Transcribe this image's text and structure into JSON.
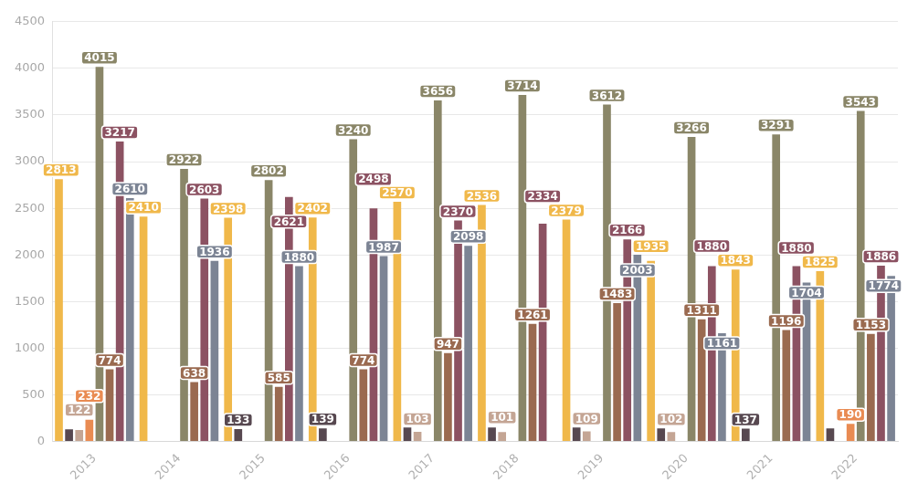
{
  "chart_data": {
    "type": "bar",
    "categories": [
      "2013",
      "2014",
      "2015",
      "2016",
      "2017",
      "2018",
      "2019",
      "2020",
      "2021",
      "2022"
    ],
    "series": [
      {
        "color": "#f0b84a",
        "values": [
          2813,
          2410,
          2398,
          2402,
          2570,
          2536,
          2379,
          1935,
          1843,
          1825
        ],
        "value_labels": [
          "2813",
          "2410",
          "2398",
          "2402",
          "2570",
          "2536",
          "2379",
          "1935",
          "1843",
          "1825"
        ]
      },
      {
        "color": "#574850",
        "values": [
          130,
          null,
          133,
          139,
          150,
          150,
          150,
          140,
          137,
          140
        ],
        "value_labels": [
          null,
          null,
          "133",
          "139",
          null,
          null,
          null,
          null,
          "137",
          null
        ]
      },
      {
        "color": "#c4a594",
        "values": [
          122,
          null,
          null,
          null,
          103,
          101,
          109,
          102,
          null,
          null
        ],
        "value_labels": [
          "122",
          null,
          null,
          null,
          "103",
          "101",
          "109",
          "102",
          null,
          null
        ]
      },
      {
        "color": "#e98b52",
        "values": [
          232,
          null,
          null,
          null,
          null,
          null,
          null,
          null,
          null,
          190
        ],
        "value_labels": [
          "232",
          null,
          null,
          null,
          null,
          null,
          null,
          null,
          null,
          "190"
        ]
      },
      {
        "color": "#8a8668",
        "values": [
          4015,
          2922,
          2802,
          3240,
          3656,
          3714,
          3612,
          3266,
          3291,
          3543
        ],
        "value_labels": [
          "4015",
          "2922",
          "2802",
          "3240",
          "3656",
          "3714",
          "3612",
          "3266",
          "3291",
          "3543"
        ]
      },
      {
        "color": "#9a6a50",
        "values": [
          774,
          638,
          585,
          774,
          947,
          1261,
          1483,
          1311,
          1196,
          1153
        ],
        "value_labels": [
          "774",
          "638",
          "585",
          "774",
          "947",
          "1261",
          "1483",
          "1311",
          "1196",
          "1153"
        ]
      },
      {
        "color": "#8c5262",
        "values": [
          3217,
          2603,
          2621,
          2498,
          2370,
          2334,
          2166,
          1880,
          1880,
          1886
        ],
        "value_labels": [
          "3217",
          "2603",
          "2621",
          "2498",
          "2370",
          "2334",
          "2166",
          "1880",
          "1880",
          "1886"
        ]
      },
      {
        "color": "#7c8494",
        "values": [
          2610,
          1936,
          1880,
          1987,
          2098,
          null,
          2003,
          1161,
          1704,
          1774
        ],
        "value_labels": [
          "2610",
          "1936",
          "1880",
          "1987",
          "2098",
          null,
          "2003",
          "1161",
          "1704",
          "1774"
        ]
      }
    ],
    "ylim": [
      0,
      4500
    ],
    "yticks": [
      0,
      500,
      1000,
      1500,
      2000,
      2500,
      3000,
      3500,
      4000,
      4500
    ],
    "grid": "y",
    "legend": false
  }
}
